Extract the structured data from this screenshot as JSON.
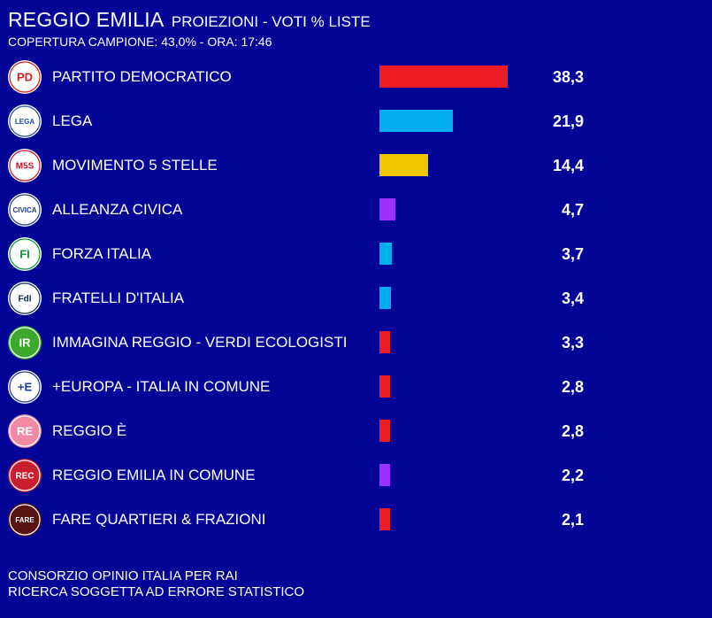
{
  "header": {
    "city": "REGGIO EMILIA",
    "subtitle": "PROIEZIONI - VOTI % LISTE",
    "coverage": "COPERTURA CAMPIONE: 43,0%  - ORA: 17:46"
  },
  "chart_data": {
    "type": "bar",
    "orientation": "horizontal",
    "title": "REGGIO EMILIA PROIEZIONI - VOTI % LISTE",
    "xlim": [
      0,
      38.3
    ],
    "categories": [
      "PARTITO DEMOCRATICO",
      "LEGA",
      "MOVIMENTO 5 STELLE",
      "ALLEANZA CIVICA",
      "FORZA ITALIA",
      "FRATELLI D'ITALIA",
      "IMMAGINA REGGIO - VERDI ECOLOGISTI",
      "+EUROPA - ITALIA IN COMUNE",
      "REGGIO È",
      "REGGIO EMILIA IN COMUNE",
      "FARE QUARTIERI & FRAZIONI"
    ],
    "values": [
      38.3,
      21.9,
      14.4,
      4.7,
      3.7,
      3.4,
      3.3,
      2.8,
      2.8,
      2.2,
      2.1
    ],
    "value_labels": [
      "38,3",
      "21,9",
      "14,4",
      "4,7",
      "3,7",
      "3,4",
      "3,3",
      "2,8",
      "2,8",
      "2,2",
      "2,1"
    ],
    "colors": [
      "#ee1c25",
      "#00aeef",
      "#f2c500",
      "#9b30ff",
      "#00aeef",
      "#00aeef",
      "#ee1c25",
      "#ee1c25",
      "#ee1c25",
      "#9b30ff",
      "#ee1c25"
    ],
    "logos": [
      {
        "icon": "pd-logo-icon",
        "text": "PD",
        "bg": "#ffffff",
        "fg": "#d81e1e"
      },
      {
        "icon": "lega-logo-icon",
        "text": "LEGA",
        "bg": "#ffffff",
        "fg": "#1f4fa8"
      },
      {
        "icon": "m5s-logo-icon",
        "text": "M5S",
        "bg": "#ffffff",
        "fg": "#c8102e"
      },
      {
        "icon": "alleanza-civica-logo-icon",
        "text": "CIVICA",
        "bg": "#ffffff",
        "fg": "#1f3f8f"
      },
      {
        "icon": "forza-italia-logo-icon",
        "text": "FI",
        "bg": "#ffffff",
        "fg": "#0a9a3c"
      },
      {
        "icon": "fratelli-italia-logo-icon",
        "text": "FdI",
        "bg": "#ffffff",
        "fg": "#0b2a6b"
      },
      {
        "icon": "immagina-reggio-logo-icon",
        "text": "IR",
        "bg": "#3ea82e",
        "fg": "#ffffff"
      },
      {
        "icon": "piu-europa-logo-icon",
        "text": "+E",
        "bg": "#ffffff",
        "fg": "#1b3b9c"
      },
      {
        "icon": "reggio-e-logo-icon",
        "text": "RE",
        "bg": "#f08aa0",
        "fg": "#ffffff"
      },
      {
        "icon": "reggio-emilia-in-comune-logo-icon",
        "text": "REC",
        "bg": "#c81e2d",
        "fg": "#ffffff"
      },
      {
        "icon": "fare-quartieri-logo-icon",
        "text": "FARE",
        "bg": "#5a1414",
        "fg": "#ffffff"
      }
    ]
  },
  "footer": {
    "line1": "CONSORZIO OPINIO ITALIA PER RAI",
    "line2": "RICERCA SOGGETTA AD ERRORE STATISTICO"
  }
}
